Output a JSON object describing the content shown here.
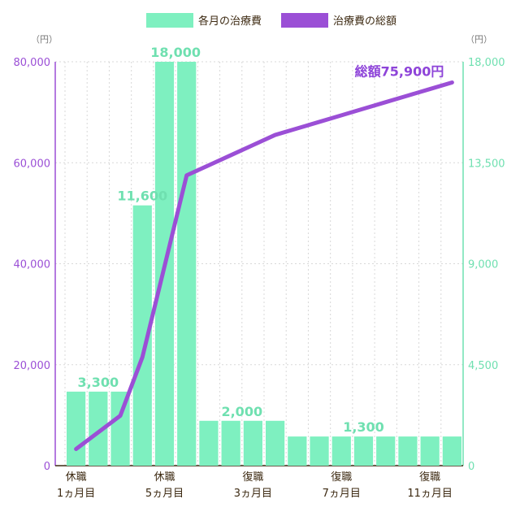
{
  "legend": {
    "monthly": "各月の治療費",
    "total": "治療費の総額"
  },
  "units": {
    "left": "（円）",
    "right": "（円）"
  },
  "colors": {
    "bar": "#7ef0c0",
    "line": "#9b4fd6",
    "grid": "#d8d8d8",
    "axis_left": "#9b4fd6",
    "axis_right": "#6fe0b0"
  },
  "chart_data": {
    "type": "bar",
    "x": [
      "1",
      "2",
      "3",
      "4",
      "5",
      "6",
      "7",
      "8",
      "9",
      "10",
      "11",
      "12",
      "13",
      "14",
      "15",
      "16",
      "17",
      "18"
    ],
    "category_labels": [
      {
        "index": 0,
        "line1": "休職",
        "line2": "1ヵ月目"
      },
      {
        "index": 4,
        "line1": "休職",
        "line2": "5ヵ月目"
      },
      {
        "index": 8,
        "line1": "復職",
        "line2": "3ヵ月目"
      },
      {
        "index": 12,
        "line1": "復職",
        "line2": "7ヵ月目"
      },
      {
        "index": 16,
        "line1": "復職",
        "line2": "11ヵ月目"
      }
    ],
    "series": [
      {
        "name": "各月の治療費",
        "type": "bar",
        "axis": "right",
        "values": [
          3300,
          3300,
          3300,
          11600,
          18000,
          18000,
          2000,
          2000,
          2000,
          2000,
          1300,
          1300,
          1300,
          1300,
          1300,
          1300,
          1300,
          1300
        ]
      },
      {
        "name": "治療費の総額",
        "type": "line",
        "axis": "left",
        "values": [
          3300,
          6600,
          9900,
          21500,
          39500,
          57500,
          59500,
          61500,
          63500,
          65500,
          66800,
          68100,
          69400,
          70700,
          72000,
          73300,
          74600,
          75900
        ]
      }
    ],
    "data_labels": [
      {
        "index": 1,
        "text": "3,300"
      },
      {
        "index": 3,
        "text": "11,600"
      },
      {
        "index": 4.5,
        "text": "18,000"
      },
      {
        "index": 7.5,
        "text": "2,000"
      },
      {
        "index": 13,
        "text": "1,300"
      }
    ],
    "total_label": "総額75,900円",
    "y_left": {
      "ticks": [
        "80,000",
        "60,000",
        "40,000",
        "20,000",
        "0"
      ],
      "range": [
        0,
        80000
      ]
    },
    "y_right": {
      "ticks": [
        "18,000",
        "13,500",
        "9,000",
        "4,500",
        "0"
      ],
      "range": [
        0,
        18000
      ]
    },
    "grid": true,
    "legend_position": "top-center"
  }
}
